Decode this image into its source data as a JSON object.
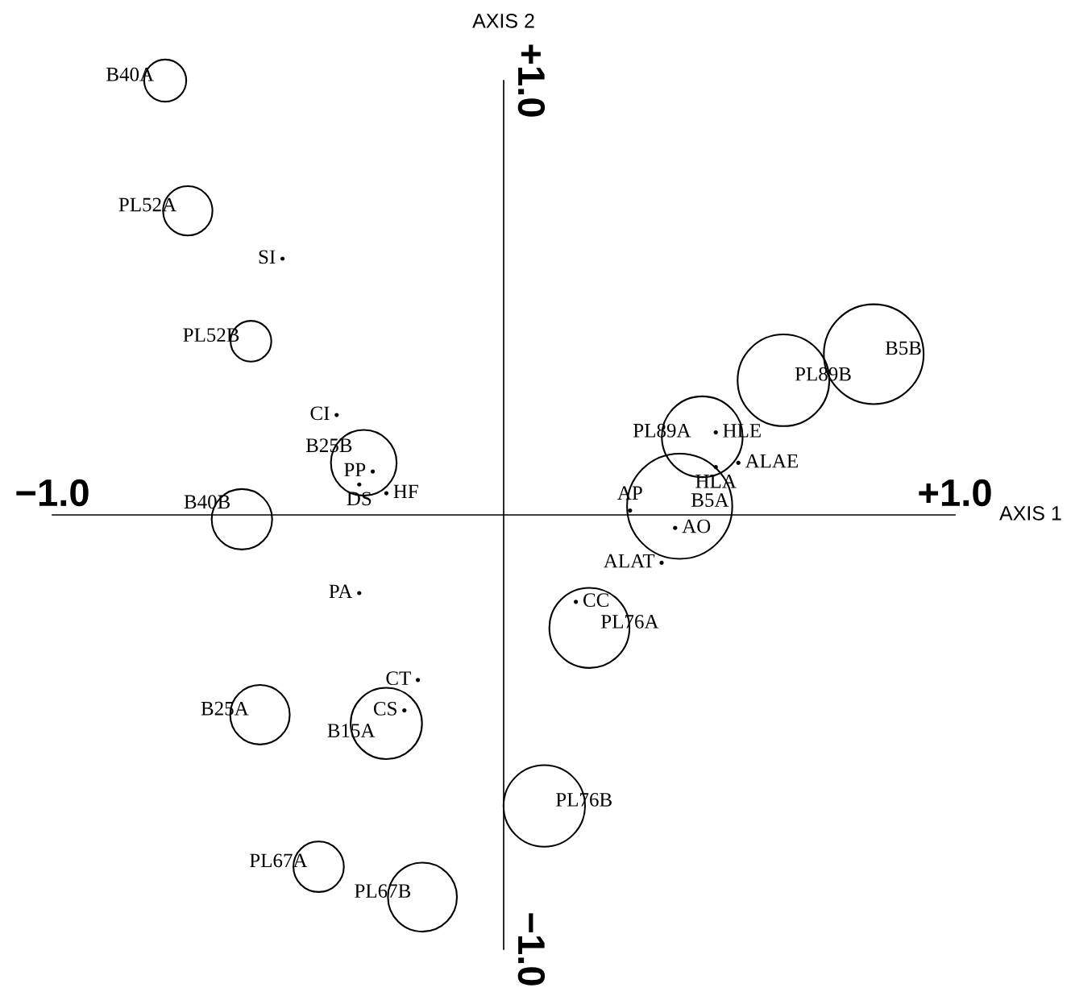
{
  "chart_data": {
    "type": "bubble",
    "xlabel": "AXIS 1",
    "ylabel": "AXIS 2",
    "xlim": [
      -1,
      1
    ],
    "ylim": [
      -1,
      1
    ],
    "xticks": [
      {
        "value": -1,
        "label": "−1.0"
      },
      {
        "value": 1,
        "label": "+1.0"
      }
    ],
    "yticks": [
      {
        "value": -1,
        "label": "−1.0"
      },
      {
        "value": 1,
        "label": "+1.0"
      }
    ],
    "marker": "circle",
    "series": [
      {
        "color": "#000000",
        "x": [
          -0.75,
          -0.7,
          -0.56,
          -0.31,
          -0.58,
          -0.54,
          -0.26,
          -0.41,
          -0.18,
          0.09,
          0.19,
          0.39,
          0.44,
          0.62,
          0.82
        ],
        "values": [
          1.0,
          0.7,
          0.4,
          0.12,
          -0.01,
          -0.46,
          -0.48,
          -0.81,
          -0.88,
          -0.67,
          -0.26,
          0.02,
          0.18,
          0.31,
          0.37
        ],
        "sizes": [
          0.16,
          0.22,
          0.15,
          0.39,
          0.33,
          0.32,
          0.46,
          0.23,
          0.43,
          0.6,
          0.58,
          1,
          0.59,
          0.76,
          0.9
        ],
        "value_labels": [
          "B40A",
          "PL52A",
          "PL52B",
          "B25B",
          "B40B",
          "B25A",
          "B15A",
          "PL67A",
          "PL67B",
          "PL76B",
          "PL76A",
          "B5A",
          "PL89A",
          "PL89B",
          "B5B"
        ]
      },
      {
        "type": "scatter",
        "color": "#000000",
        "x": [
          -0.49,
          -0.37,
          -0.29,
          -0.32,
          -0.26,
          -0.32,
          -0.19,
          -0.22,
          0.16,
          0.28,
          0.38,
          0.35,
          0.47,
          0.47,
          0.52
        ],
        "values": [
          0.59,
          0.23,
          0.1,
          0.07,
          0.05,
          -0.18,
          -0.38,
          -0.45,
          -0.2,
          0.01,
          -0.03,
          -0.11,
          0.11,
          0.19,
          0.12
        ],
        "value_labels": [
          "SI",
          "CI",
          "PP",
          "DS",
          "HF",
          "PA",
          "CT",
          "CS",
          "CC",
          "AP",
          "AO",
          "ALAT",
          "HLA",
          "HLE",
          "ALAE"
        ]
      }
    ]
  }
}
